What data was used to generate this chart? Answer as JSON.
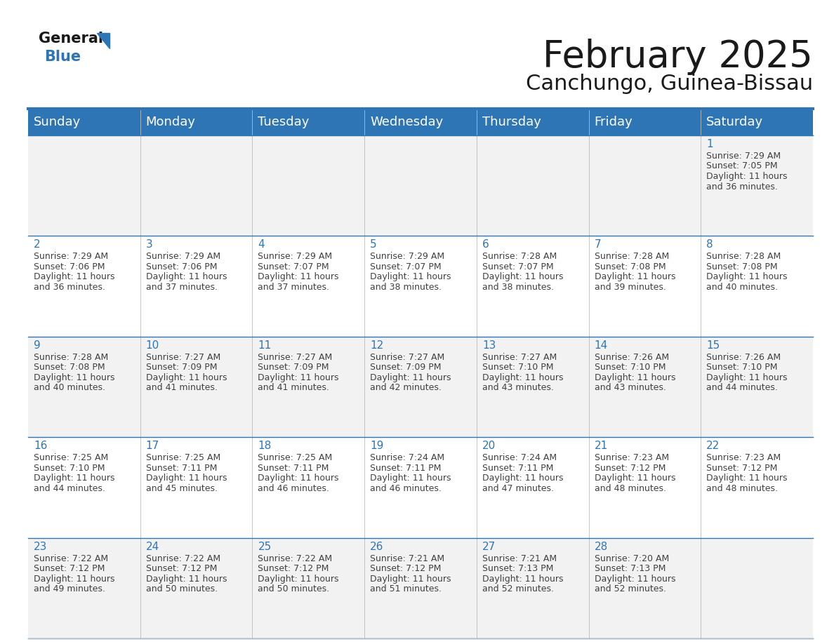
{
  "title": "February 2025",
  "subtitle": "Canchungo, Guinea-Bissau",
  "header_bg_color": "#2E75B6",
  "header_text_color": "#FFFFFF",
  "border_color": "#2E75B6",
  "text_color": "#404040",
  "day_number_color": "#2E75B6",
  "days_of_week": [
    "Sunday",
    "Monday",
    "Tuesday",
    "Wednesday",
    "Thursday",
    "Friday",
    "Saturday"
  ],
  "title_fontsize": 38,
  "subtitle_fontsize": 22,
  "header_fontsize": 13,
  "day_num_fontsize": 11,
  "cell_text_fontsize": 9,
  "calendar_data": [
    [
      null,
      null,
      null,
      null,
      null,
      null,
      {
        "day": 1,
        "sunrise": "7:29 AM",
        "sunset": "7:05 PM",
        "daylight": "11 hours",
        "daylight2": "and 36 minutes."
      }
    ],
    [
      {
        "day": 2,
        "sunrise": "7:29 AM",
        "sunset": "7:06 PM",
        "daylight": "11 hours",
        "daylight2": "and 36 minutes."
      },
      {
        "day": 3,
        "sunrise": "7:29 AM",
        "sunset": "7:06 PM",
        "daylight": "11 hours",
        "daylight2": "and 37 minutes."
      },
      {
        "day": 4,
        "sunrise": "7:29 AM",
        "sunset": "7:07 PM",
        "daylight": "11 hours",
        "daylight2": "and 37 minutes."
      },
      {
        "day": 5,
        "sunrise": "7:29 AM",
        "sunset": "7:07 PM",
        "daylight": "11 hours",
        "daylight2": "and 38 minutes."
      },
      {
        "day": 6,
        "sunrise": "7:28 AM",
        "sunset": "7:07 PM",
        "daylight": "11 hours",
        "daylight2": "and 38 minutes."
      },
      {
        "day": 7,
        "sunrise": "7:28 AM",
        "sunset": "7:08 PM",
        "daylight": "11 hours",
        "daylight2": "and 39 minutes."
      },
      {
        "day": 8,
        "sunrise": "7:28 AM",
        "sunset": "7:08 PM",
        "daylight": "11 hours",
        "daylight2": "and 40 minutes."
      }
    ],
    [
      {
        "day": 9,
        "sunrise": "7:28 AM",
        "sunset": "7:08 PM",
        "daylight": "11 hours",
        "daylight2": "and 40 minutes."
      },
      {
        "day": 10,
        "sunrise": "7:27 AM",
        "sunset": "7:09 PM",
        "daylight": "11 hours",
        "daylight2": "and 41 minutes."
      },
      {
        "day": 11,
        "sunrise": "7:27 AM",
        "sunset": "7:09 PM",
        "daylight": "11 hours",
        "daylight2": "and 41 minutes."
      },
      {
        "day": 12,
        "sunrise": "7:27 AM",
        "sunset": "7:09 PM",
        "daylight": "11 hours",
        "daylight2": "and 42 minutes."
      },
      {
        "day": 13,
        "sunrise": "7:27 AM",
        "sunset": "7:10 PM",
        "daylight": "11 hours",
        "daylight2": "and 43 minutes."
      },
      {
        "day": 14,
        "sunrise": "7:26 AM",
        "sunset": "7:10 PM",
        "daylight": "11 hours",
        "daylight2": "and 43 minutes."
      },
      {
        "day": 15,
        "sunrise": "7:26 AM",
        "sunset": "7:10 PM",
        "daylight": "11 hours",
        "daylight2": "and 44 minutes."
      }
    ],
    [
      {
        "day": 16,
        "sunrise": "7:25 AM",
        "sunset": "7:10 PM",
        "daylight": "11 hours",
        "daylight2": "and 44 minutes."
      },
      {
        "day": 17,
        "sunrise": "7:25 AM",
        "sunset": "7:11 PM",
        "daylight": "11 hours",
        "daylight2": "and 45 minutes."
      },
      {
        "day": 18,
        "sunrise": "7:25 AM",
        "sunset": "7:11 PM",
        "daylight": "11 hours",
        "daylight2": "and 46 minutes."
      },
      {
        "day": 19,
        "sunrise": "7:24 AM",
        "sunset": "7:11 PM",
        "daylight": "11 hours",
        "daylight2": "and 46 minutes."
      },
      {
        "day": 20,
        "sunrise": "7:24 AM",
        "sunset": "7:11 PM",
        "daylight": "11 hours",
        "daylight2": "and 47 minutes."
      },
      {
        "day": 21,
        "sunrise": "7:23 AM",
        "sunset": "7:12 PM",
        "daylight": "11 hours",
        "daylight2": "and 48 minutes."
      },
      {
        "day": 22,
        "sunrise": "7:23 AM",
        "sunset": "7:12 PM",
        "daylight": "11 hours",
        "daylight2": "and 48 minutes."
      }
    ],
    [
      {
        "day": 23,
        "sunrise": "7:22 AM",
        "sunset": "7:12 PM",
        "daylight": "11 hours",
        "daylight2": "and 49 minutes."
      },
      {
        "day": 24,
        "sunrise": "7:22 AM",
        "sunset": "7:12 PM",
        "daylight": "11 hours",
        "daylight2": "and 50 minutes."
      },
      {
        "day": 25,
        "sunrise": "7:22 AM",
        "sunset": "7:12 PM",
        "daylight": "11 hours",
        "daylight2": "and 50 minutes."
      },
      {
        "day": 26,
        "sunrise": "7:21 AM",
        "sunset": "7:12 PM",
        "daylight": "11 hours",
        "daylight2": "and 51 minutes."
      },
      {
        "day": 27,
        "sunrise": "7:21 AM",
        "sunset": "7:13 PM",
        "daylight": "11 hours",
        "daylight2": "and 52 minutes."
      },
      {
        "day": 28,
        "sunrise": "7:20 AM",
        "sunset": "7:13 PM",
        "daylight": "11 hours",
        "daylight2": "and 52 minutes."
      },
      null
    ]
  ]
}
